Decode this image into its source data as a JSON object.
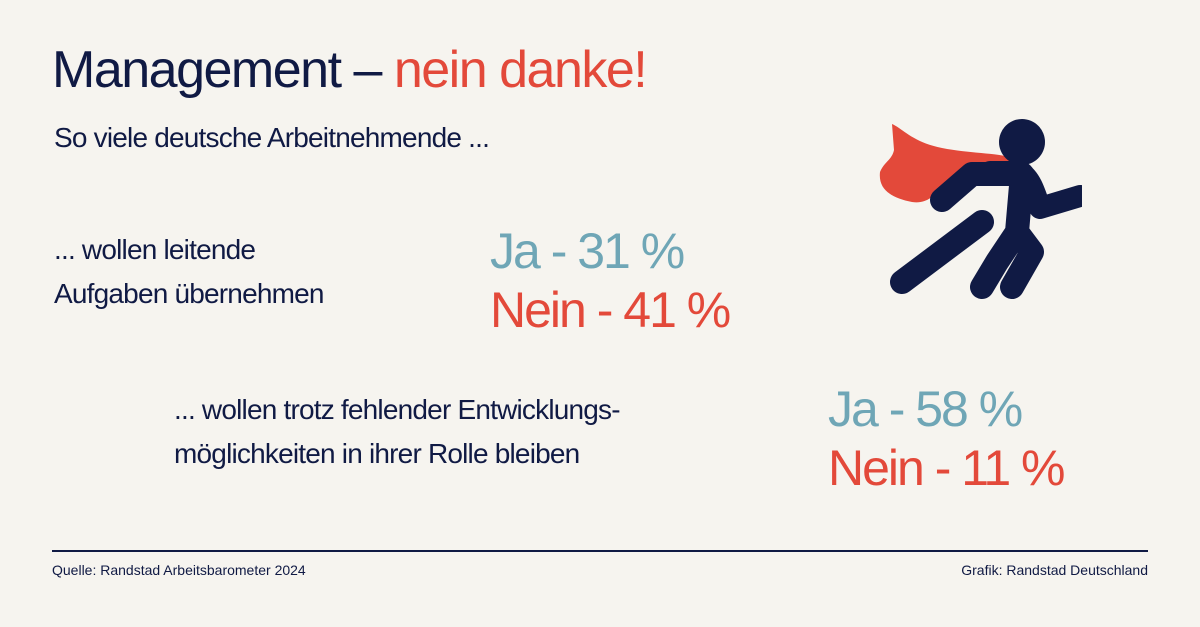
{
  "header": {
    "title_main": "Management –",
    "title_accent": "nein danke!",
    "subtitle": "So viele deutsche Arbeitnehmende ..."
  },
  "items": [
    {
      "question_line1": "... wollen leitende",
      "question_line2": "Aufgaben übernehmen",
      "ja": "Ja - 31 %",
      "nein": "Nein - 41 %",
      "ja_percent": 31,
      "nein_percent": 41
    },
    {
      "question_line1": "... wollen trotz fehlender Entwicklungs-",
      "question_line2": "möglichkeiten in ihrer Rolle bleiben",
      "ja": "Ja - 58 %",
      "nein": "Nein - 11 %",
      "ja_percent": 58,
      "nein_percent": 11
    }
  ],
  "footer": {
    "source": "Quelle: Randstad Arbeitsbarometer 2024",
    "credit": "Grafik: Randstad Deutschland"
  },
  "illustration": {
    "icon": "running-superhero-icon"
  },
  "colors": {
    "navy": "#101a44",
    "red": "#e3493a",
    "teal": "#6fa6b6",
    "background": "#f6f4ef"
  }
}
